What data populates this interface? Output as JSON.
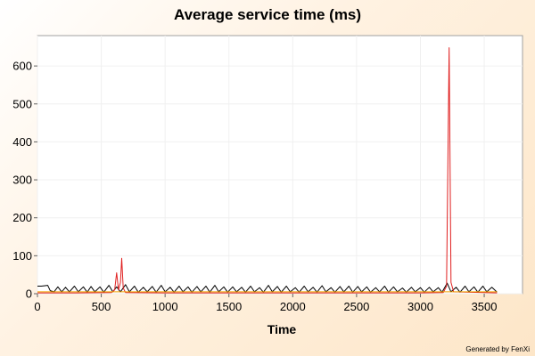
{
  "chart_data": {
    "type": "line",
    "title": "Average service time (ms)",
    "xlabel": "Time",
    "ylabel": "",
    "xlim": [
      0,
      3800
    ],
    "ylim": [
      0,
      680
    ],
    "x_ticks": [
      0,
      500,
      1000,
      1500,
      2000,
      2500,
      3000,
      3500
    ],
    "y_ticks": [
      0,
      100,
      200,
      300,
      400,
      500,
      600
    ],
    "grid": true,
    "series": [
      {
        "color": "#000000",
        "points": [
          [
            0,
            20
          ],
          [
            30,
            20
          ],
          [
            60,
            21
          ],
          [
            80,
            22
          ],
          [
            100,
            8
          ],
          [
            130,
            5
          ],
          [
            160,
            18
          ],
          [
            190,
            5
          ],
          [
            220,
            17
          ],
          [
            250,
            5
          ],
          [
            290,
            20
          ],
          [
            320,
            5
          ],
          [
            360,
            18
          ],
          [
            390,
            4
          ],
          [
            420,
            19
          ],
          [
            450,
            5
          ],
          [
            490,
            18
          ],
          [
            520,
            4
          ],
          [
            560,
            22
          ],
          [
            590,
            5
          ],
          [
            620,
            18
          ],
          [
            650,
            5
          ],
          [
            690,
            24
          ],
          [
            720,
            5
          ],
          [
            760,
            20
          ],
          [
            790,
            4
          ],
          [
            830,
            17
          ],
          [
            860,
            5
          ],
          [
            900,
            19
          ],
          [
            930,
            4
          ],
          [
            970,
            22
          ],
          [
            1000,
            5
          ],
          [
            1040,
            17
          ],
          [
            1070,
            4
          ],
          [
            1110,
            20
          ],
          [
            1140,
            5
          ],
          [
            1180,
            18
          ],
          [
            1210,
            4
          ],
          [
            1250,
            19
          ],
          [
            1280,
            5
          ],
          [
            1320,
            20
          ],
          [
            1350,
            4
          ],
          [
            1390,
            22
          ],
          [
            1420,
            5
          ],
          [
            1460,
            18
          ],
          [
            1490,
            4
          ],
          [
            1530,
            18
          ],
          [
            1560,
            5
          ],
          [
            1600,
            17
          ],
          [
            1630,
            4
          ],
          [
            1670,
            20
          ],
          [
            1700,
            5
          ],
          [
            1740,
            16
          ],
          [
            1770,
            4
          ],
          [
            1810,
            22
          ],
          [
            1840,
            5
          ],
          [
            1880,
            19
          ],
          [
            1910,
            4
          ],
          [
            1950,
            20
          ],
          [
            1980,
            5
          ],
          [
            2020,
            16
          ],
          [
            2050,
            4
          ],
          [
            2090,
            20
          ],
          [
            2120,
            5
          ],
          [
            2160,
            17
          ],
          [
            2190,
            4
          ],
          [
            2230,
            21
          ],
          [
            2260,
            5
          ],
          [
            2300,
            16
          ],
          [
            2330,
            4
          ],
          [
            2370,
            19
          ],
          [
            2400,
            5
          ],
          [
            2440,
            20
          ],
          [
            2470,
            4
          ],
          [
            2510,
            19
          ],
          [
            2540,
            5
          ],
          [
            2580,
            18
          ],
          [
            2610,
            4
          ],
          [
            2650,
            16
          ],
          [
            2680,
            5
          ],
          [
            2720,
            20
          ],
          [
            2750,
            4
          ],
          [
            2790,
            18
          ],
          [
            2820,
            5
          ],
          [
            2860,
            15
          ],
          [
            2890,
            4
          ],
          [
            2930,
            17
          ],
          [
            2960,
            5
          ],
          [
            3000,
            16
          ],
          [
            3030,
            4
          ],
          [
            3070,
            17
          ],
          [
            3100,
            5
          ],
          [
            3140,
            16
          ],
          [
            3170,
            4
          ],
          [
            3210,
            28
          ],
          [
            3240,
            5
          ],
          [
            3280,
            17
          ],
          [
            3310,
            4
          ],
          [
            3350,
            20
          ],
          [
            3380,
            5
          ],
          [
            3420,
            18
          ],
          [
            3450,
            4
          ],
          [
            3490,
            20
          ],
          [
            3520,
            5
          ],
          [
            3560,
            17
          ],
          [
            3600,
            4
          ]
        ]
      },
      {
        "color": "#e02020",
        "points": [
          [
            0,
            2
          ],
          [
            300,
            2
          ],
          [
            580,
            3
          ],
          [
            605,
            10
          ],
          [
            620,
            55
          ],
          [
            635,
            10
          ],
          [
            650,
            30
          ],
          [
            660,
            93
          ],
          [
            672,
            15
          ],
          [
            690,
            3
          ],
          [
            1000,
            2
          ],
          [
            2000,
            2
          ],
          [
            3000,
            2
          ],
          [
            3180,
            3
          ],
          [
            3205,
            20
          ],
          [
            3225,
            648
          ],
          [
            3240,
            30
          ],
          [
            3260,
            5
          ],
          [
            3600,
            2
          ]
        ]
      },
      {
        "color": "#f0a000",
        "points": [
          [
            0,
            5
          ],
          [
            3600,
            5
          ]
        ]
      }
    ]
  },
  "footer": "Generated by FenXi"
}
